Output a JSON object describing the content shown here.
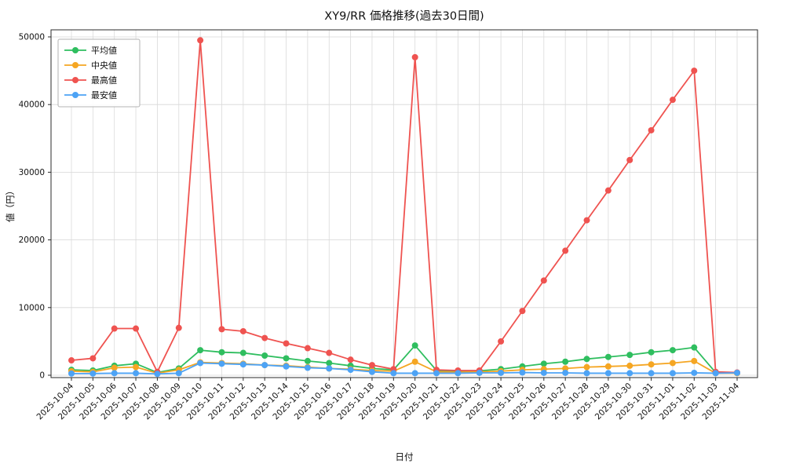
{
  "chart_data": {
    "type": "line",
    "title": "XY9/RR 価格推移(過去30日間)",
    "xlabel": "日付",
    "ylabel": "値（円）",
    "ylim": [
      0,
      50000
    ],
    "yticks": [
      0,
      10000,
      20000,
      30000,
      40000,
      50000
    ],
    "grid": true,
    "legend_position": "upper-left",
    "categories": [
      "2025-10-04",
      "2025-10-05",
      "2025-10-06",
      "2025-10-07",
      "2025-10-08",
      "2025-10-09",
      "2025-10-10",
      "2025-10-11",
      "2025-10-12",
      "2025-10-13",
      "2025-10-14",
      "2025-10-15",
      "2025-10-16",
      "2025-10-17",
      "2025-10-18",
      "2025-10-19",
      "2025-10-20",
      "2025-10-21",
      "2025-10-22",
      "2025-10-23",
      "2025-10-24",
      "2025-10-25",
      "2025-10-26",
      "2025-10-27",
      "2025-10-28",
      "2025-10-29",
      "2025-10-30",
      "2025-10-31",
      "2025-11-01",
      "2025-11-02",
      "2025-11-03",
      "2025-11-04"
    ],
    "series": [
      {
        "id": "average",
        "name": "平均値",
        "color": "#2fbe5f",
        "values": [
          800,
          700,
          1400,
          1700,
          400,
          1000,
          3700,
          3400,
          3300,
          2900,
          2500,
          2100,
          1800,
          1400,
          1000,
          800,
          4400,
          700,
          600,
          650,
          900,
          1300,
          1700,
          2000,
          2400,
          2700,
          3000,
          3400,
          3700,
          4100,
          400,
          350
        ]
      },
      {
        "id": "median",
        "name": "中央値",
        "color": "#f5a623",
        "values": [
          600,
          500,
          1100,
          1200,
          300,
          800,
          1900,
          1800,
          1700,
          1500,
          1400,
          1200,
          1000,
          900,
          700,
          600,
          2000,
          500,
          450,
          500,
          600,
          800,
          900,
          1000,
          1200,
          1300,
          1400,
          1600,
          1800,
          2100,
          300,
          300
        ]
      },
      {
        "id": "max",
        "name": "最高値",
        "color": "#ef5350",
        "values": [
          2200,
          2500,
          6900,
          6900,
          500,
          7000,
          49500,
          6800,
          6500,
          5500,
          4700,
          4000,
          3300,
          2300,
          1500,
          900,
          47000,
          800,
          700,
          700,
          5000,
          9500,
          14000,
          18400,
          22900,
          27300,
          31800,
          36200,
          40700,
          45000,
          500,
          400
        ]
      },
      {
        "id": "min",
        "name": "最安値",
        "color": "#4da3f5",
        "values": [
          250,
          250,
          300,
          300,
          200,
          300,
          1800,
          1700,
          1600,
          1500,
          1300,
          1100,
          1000,
          800,
          500,
          300,
          300,
          300,
          300,
          350,
          350,
          400,
          350,
          350,
          300,
          300,
          300,
          300,
          300,
          350,
          300,
          350
        ]
      }
    ]
  }
}
